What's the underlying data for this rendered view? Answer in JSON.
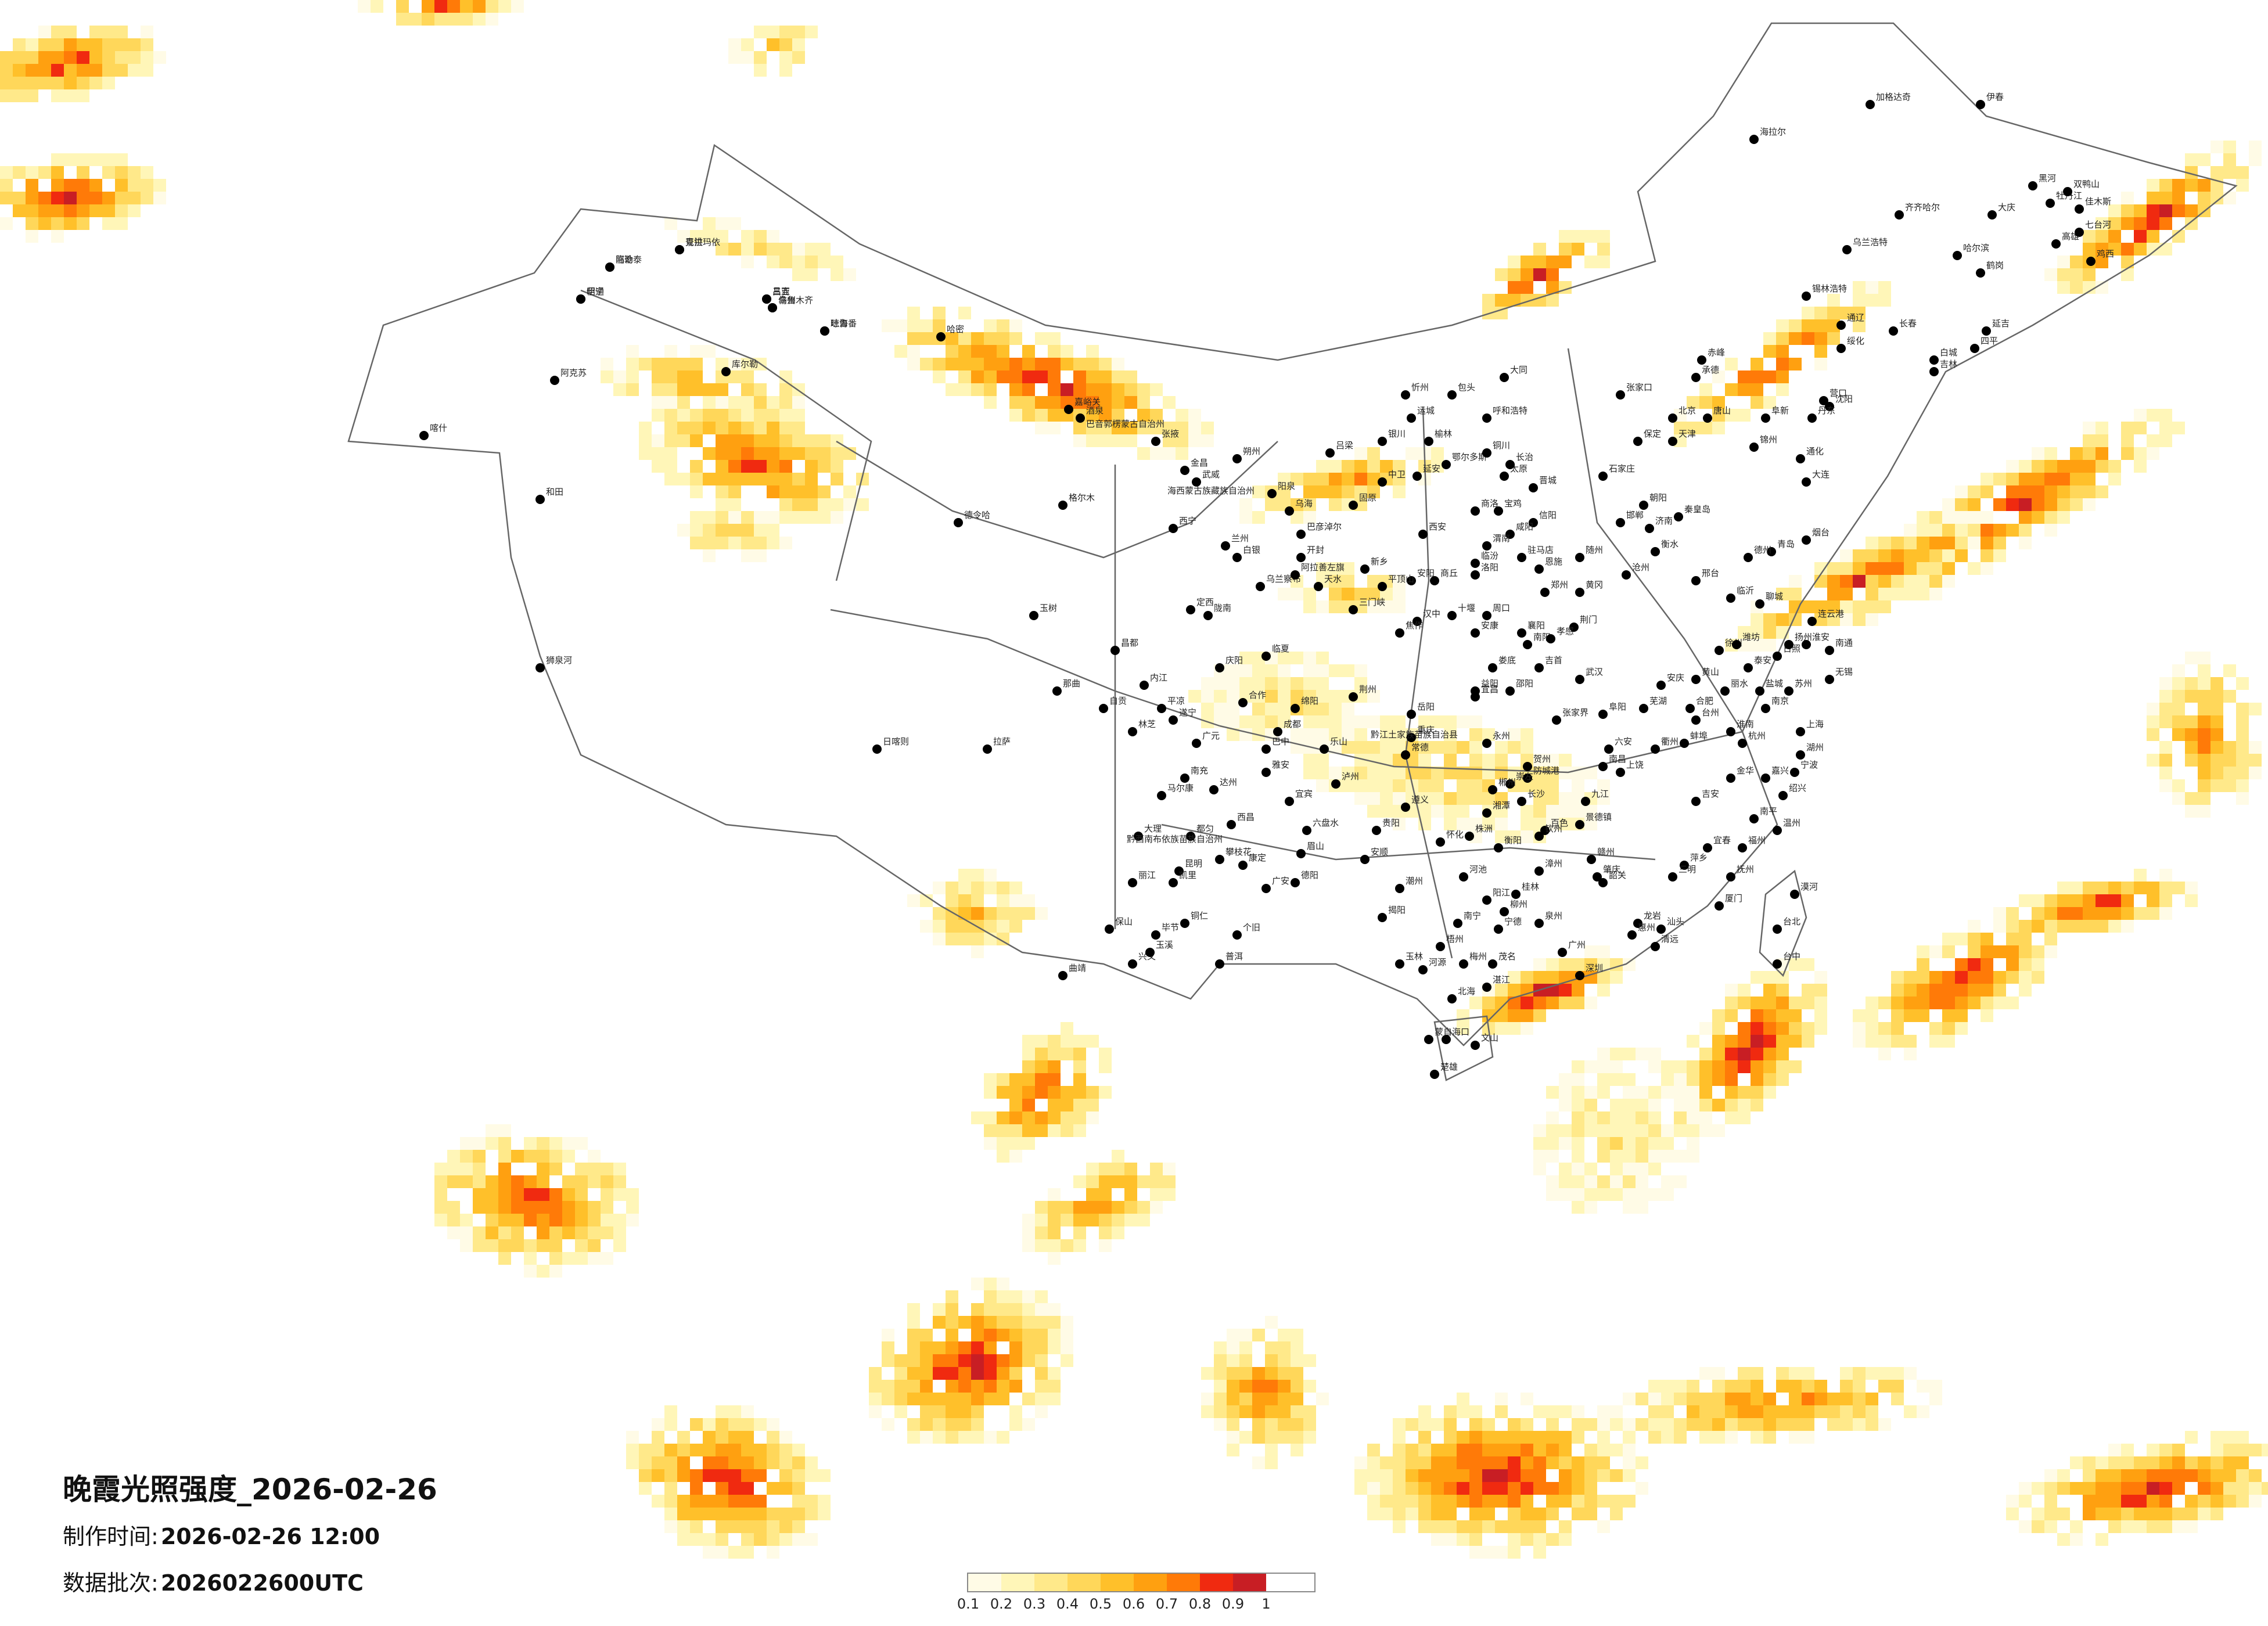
{
  "title": "晚霞光照强度_2026-02-26",
  "production_time_label": "制作时间:",
  "production_time_value": "2026-02-26 12:00",
  "batch_label": "数据批次:",
  "batch_value": "2026022600UTC",
  "legend": {
    "ticks": [
      "0.1",
      "0.2",
      "0.3",
      "0.4",
      "0.5",
      "0.6",
      "0.7",
      "0.8",
      "0.9",
      "1"
    ],
    "colors": [
      "#fffbe6",
      "#fff6b8",
      "#ffe98a",
      "#ffd75a",
      "#ffc02a",
      "#ffa010",
      "#ff7a08",
      "#f02a10",
      "#c81e24"
    ]
  },
  "cities": [
    {
      "name": "克拉玛依"
    },
    {
      "name": "阿勒泰"
    },
    {
      "name": "伊宁"
    },
    {
      "name": "昌吉"
    },
    {
      "name": "乌鲁木齐"
    },
    {
      "name": "吐鲁番"
    },
    {
      "name": "哈密"
    },
    {
      "name": "库尔勒"
    },
    {
      "name": "阿克苏"
    },
    {
      "name": "喀什"
    },
    {
      "name": "和田"
    },
    {
      "name": "嘉峪关"
    },
    {
      "name": "酒泉"
    },
    {
      "name": "张掖"
    },
    {
      "name": "金昌"
    },
    {
      "name": "武威"
    },
    {
      "name": "格尔木"
    },
    {
      "name": "德令哈"
    },
    {
      "name": "西宁"
    },
    {
      "name": "兰州"
    },
    {
      "name": "银川"
    },
    {
      "name": "中卫"
    },
    {
      "name": "固原"
    },
    {
      "name": "天水"
    },
    {
      "name": "玉树"
    },
    {
      "name": "那曲"
    },
    {
      "name": "拉萨"
    },
    {
      "name": "日喀则"
    },
    {
      "name": "林芝"
    },
    {
      "name": "昌都"
    },
    {
      "name": "狮泉河"
    },
    {
      "name": "成都"
    },
    {
      "name": "绵阳"
    },
    {
      "name": "雅安"
    },
    {
      "name": "西昌"
    },
    {
      "name": "攀枝花"
    },
    {
      "name": "昆明"
    },
    {
      "name": "大理"
    },
    {
      "name": "丽江"
    },
    {
      "name": "保山"
    },
    {
      "name": "个旧"
    },
    {
      "name": "普洱"
    },
    {
      "name": "贵阳"
    },
    {
      "name": "遵义"
    },
    {
      "name": "六盘水"
    },
    {
      "name": "安顺"
    },
    {
      "name": "重庆"
    },
    {
      "name": "南宁"
    },
    {
      "name": "桂林"
    },
    {
      "name": "柳州"
    },
    {
      "name": "北海"
    },
    {
      "name": "海口"
    },
    {
      "name": "广州"
    },
    {
      "name": "深圳"
    },
    {
      "name": "汕头"
    },
    {
      "name": "湛江"
    },
    {
      "name": "韶关"
    },
    {
      "name": "福州"
    },
    {
      "name": "厦门"
    },
    {
      "name": "南昌"
    },
    {
      "name": "赣州"
    },
    {
      "name": "长沙"
    },
    {
      "name": "衡阳"
    },
    {
      "name": "怀化"
    },
    {
      "name": "武汉"
    },
    {
      "name": "宜昌"
    },
    {
      "name": "襄阳"
    },
    {
      "name": "十堰"
    },
    {
      "name": "郑州"
    },
    {
      "name": "洛阳"
    },
    {
      "name": "南阳"
    },
    {
      "name": "西安"
    },
    {
      "name": "延安"
    },
    {
      "name": "榆林"
    },
    {
      "name": "汉中"
    },
    {
      "name": "安康"
    },
    {
      "name": "太原"
    },
    {
      "name": "大同"
    },
    {
      "name": "临汾"
    },
    {
      "name": "石家庄"
    },
    {
      "name": "邯郸"
    },
    {
      "name": "保定"
    },
    {
      "name": "张家口"
    },
    {
      "name": "北京"
    },
    {
      "name": "天津"
    },
    {
      "name": "唐山"
    },
    {
      "name": "承德"
    },
    {
      "name": "济南"
    },
    {
      "name": "青岛"
    },
    {
      "name": "烟台"
    },
    {
      "name": "临沂"
    },
    {
      "name": "徐州"
    },
    {
      "name": "南京"
    },
    {
      "name": "苏州"
    },
    {
      "name": "上海"
    },
    {
      "name": "杭州"
    },
    {
      "name": "宁波"
    },
    {
      "name": "温州"
    },
    {
      "name": "合肥"
    },
    {
      "name": "阜阳"
    },
    {
      "name": "呼和浩特"
    },
    {
      "name": "包头"
    },
    {
      "name": "鄂尔多斯"
    },
    {
      "name": "赤峰"
    },
    {
      "name": "通辽"
    },
    {
      "name": "锡林浩特"
    },
    {
      "name": "乌兰浩特"
    },
    {
      "name": "海拉尔"
    },
    {
      "name": "加格达奇"
    },
    {
      "name": "沈阳"
    },
    {
      "name": "大连"
    },
    {
      "name": "丹东"
    },
    {
      "name": "锦州"
    },
    {
      "name": "长春"
    },
    {
      "name": "吉林"
    },
    {
      "name": "延吉"
    },
    {
      "name": "哈尔滨"
    },
    {
      "name": "齐齐哈尔"
    },
    {
      "name": "大庆"
    },
    {
      "name": "牡丹江"
    },
    {
      "name": "佳木斯"
    },
    {
      "name": "黑河"
    },
    {
      "name": "伊春"
    },
    {
      "name": "漠河"
    },
    {
      "name": "台北"
    },
    {
      "name": "台中"
    },
    {
      "name": "高雄"
    },
    {
      "name": "鸡西"
    },
    {
      "name": "七台河"
    },
    {
      "name": "双鸭山"
    },
    {
      "name": "鹤岗"
    },
    {
      "name": "绥化"
    },
    {
      "name": "白城"
    },
    {
      "name": "四平"
    },
    {
      "name": "通化"
    },
    {
      "name": "营口"
    },
    {
      "name": "阜新"
    },
    {
      "name": "朝阳"
    },
    {
      "name": "秦皇岛"
    },
    {
      "name": "沧州"
    },
    {
      "name": "衡水"
    },
    {
      "name": "邢台"
    },
    {
      "name": "德州"
    },
    {
      "name": "聊城"
    },
    {
      "name": "泰安"
    },
    {
      "name": "潍坊"
    },
    {
      "name": "日照"
    },
    {
      "name": "连云港"
    },
    {
      "name": "盐城"
    },
    {
      "name": "淮安"
    },
    {
      "name": "扬州"
    },
    {
      "name": "南通"
    },
    {
      "name": "无锡"
    },
    {
      "name": "湖州"
    },
    {
      "name": "嘉兴"
    },
    {
      "name": "绍兴"
    },
    {
      "name": "金华"
    },
    {
      "name": "衢州"
    },
    {
      "name": "台州"
    },
    {
      "name": "丽水"
    },
    {
      "name": "黄山"
    },
    {
      "name": "安庆"
    },
    {
      "name": "芜湖"
    },
    {
      "name": "蚌埠"
    },
    {
      "name": "淮南"
    },
    {
      "name": "六安"
    },
    {
      "name": "九江"
    },
    {
      "name": "景德镇"
    },
    {
      "name": "上饶"
    },
    {
      "name": "吉安"
    },
    {
      "name": "宜春"
    },
    {
      "name": "萍乡"
    },
    {
      "name": "抚州"
    },
    {
      "name": "南平"
    },
    {
      "name": "三明"
    },
    {
      "name": "龙岩"
    },
    {
      "name": "泉州"
    },
    {
      "name": "漳州"
    },
    {
      "name": "宁德"
    },
    {
      "name": "梅州"
    },
    {
      "name": "惠州"
    },
    {
      "name": "清远"
    },
    {
      "name": "肇庆"
    },
    {
      "name": "茂名"
    },
    {
      "name": "阳江"
    },
    {
      "name": "揭阳"
    },
    {
      "name": "潮州"
    },
    {
      "name": "河源"
    },
    {
      "name": "玉林"
    },
    {
      "name": "梧州"
    },
    {
      "name": "百色"
    },
    {
      "name": "河池"
    },
    {
      "name": "钦州"
    },
    {
      "name": "防城港"
    },
    {
      "name": "崇左"
    },
    {
      "name": "贺州"
    },
    {
      "name": "永州"
    },
    {
      "name": "郴州"
    },
    {
      "name": "株洲"
    },
    {
      "name": "湘潭"
    },
    {
      "name": "岳阳"
    },
    {
      "name": "常德"
    },
    {
      "name": "益阳"
    },
    {
      "name": "娄底"
    },
    {
      "name": "邵阳"
    },
    {
      "name": "张家界"
    },
    {
      "name": "吉首"
    },
    {
      "name": "荆州"
    },
    {
      "name": "荆门"
    },
    {
      "name": "孝感"
    },
    {
      "name": "黄冈"
    },
    {
      "name": "随州"
    },
    {
      "name": "恩施"
    },
    {
      "name": "信阳"
    },
    {
      "name": "驻马店"
    },
    {
      "name": "周口"
    },
    {
      "name": "商丘"
    },
    {
      "name": "开封"
    },
    {
      "name": "新乡"
    },
    {
      "name": "安阳"
    },
    {
      "name": "焦作"
    },
    {
      "name": "三门峡"
    },
    {
      "name": "平顶山"
    },
    {
      "name": "宝鸡"
    },
    {
      "name": "咸阳"
    },
    {
      "name": "渭南"
    },
    {
      "name": "商洛"
    },
    {
      "name": "铜川"
    },
    {
      "name": "长治"
    },
    {
      "name": "晋城"
    },
    {
      "name": "运城"
    },
    {
      "name": "吕梁"
    },
    {
      "name": "忻州"
    },
    {
      "name": "朔州"
    },
    {
      "name": "阳泉"
    },
    {
      "name": "乌海"
    },
    {
      "name": "巴彦淖尔"
    },
    {
      "name": "乌兰察布"
    },
    {
      "name": "阿拉善左旗"
    },
    {
      "name": "白银"
    },
    {
      "name": "定西"
    },
    {
      "name": "平凉"
    },
    {
      "name": "庆阳"
    },
    {
      "name": "陇南"
    },
    {
      "name": "临夏"
    },
    {
      "name": "合作"
    },
    {
      "name": "广元"
    },
    {
      "name": "巴中"
    },
    {
      "name": "达州"
    },
    {
      "name": "南充"
    },
    {
      "name": "遂宁"
    },
    {
      "name": "内江"
    },
    {
      "name": "自贡"
    },
    {
      "name": "宜宾"
    },
    {
      "name": "泸州"
    },
    {
      "name": "乐山"
    },
    {
      "name": "眉山"
    },
    {
      "name": "德阳"
    },
    {
      "name": "广安"
    },
    {
      "name": "马尔康"
    },
    {
      "name": "康定"
    },
    {
      "name": "都匀"
    },
    {
      "name": "凯里"
    },
    {
      "name": "铜仁"
    },
    {
      "name": "毕节"
    },
    {
      "name": "兴义"
    },
    {
      "name": "曲靖"
    },
    {
      "name": "玉溪"
    },
    {
      "name": "楚雄"
    },
    {
      "name": "蒙自"
    },
    {
      "name": "文山"
    },
    {
      "name": "景洪"
    },
    {
      "name": "临沧"
    },
    {
      "name": "昭通"
    },
    {
      "name": "三亚"
    },
    {
      "name": "儋州"
    },
    {
      "name": "琼海"
    }
  ],
  "map_labels": [
    "巴音郭楞蒙古自治州",
    "海西蒙古族藏族自治州",
    "黔西南布依族苗族自治州",
    "黔江土家族苗族自治县"
  ]
}
